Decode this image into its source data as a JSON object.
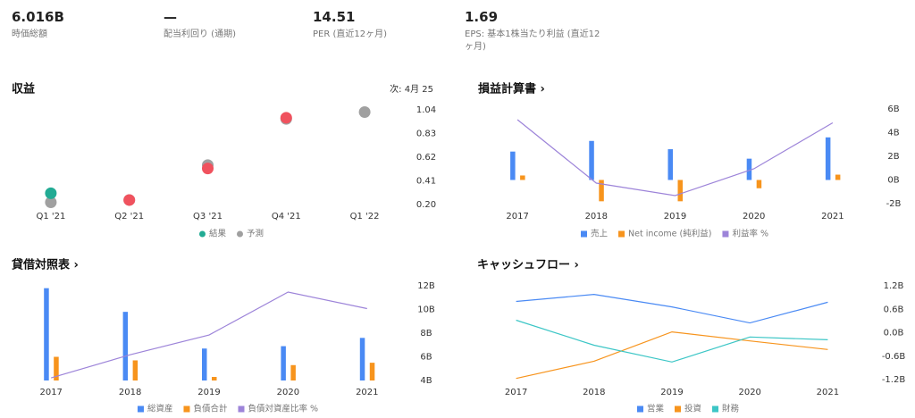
{
  "stats": [
    {
      "value": "6.016B",
      "label": "時価総額"
    },
    {
      "value": "—",
      "label": "配当利回り (通期)"
    },
    {
      "value": "14.51",
      "label": "PER (直近12ヶ月)"
    },
    {
      "value": "1.69",
      "label": "EPS: 基本1株当たり利益 (直近12ヶ月)"
    }
  ],
  "chart_data": [
    {
      "type": "scatter",
      "title": "収益",
      "annotation": "次: 4月 25",
      "categories": [
        "Q1 '21",
        "Q2 '21",
        "Q3 '21",
        "Q4 '21",
        "Q1 '22"
      ],
      "series": [
        {
          "name": "予測",
          "color": "#a0a0a0",
          "values": [
            0.22,
            0.24,
            0.55,
            0.96,
            1.02
          ]
        },
        {
          "name": "結果",
          "color": "#22ab94",
          "colors": [
            "#22ab94",
            "#f0525e",
            "#f0525e",
            "#f0525e",
            null
          ],
          "values": [
            0.3,
            0.24,
            0.52,
            0.97,
            null
          ]
        }
      ],
      "legend_order": [
        1,
        0
      ],
      "ylim": [
        0.2,
        1.04
      ],
      "yticks": [
        {
          "value": 0.2,
          "label": "0.20"
        },
        0.41,
        0.62,
        0.83,
        1.04
      ]
    },
    {
      "type": "bar",
      "title": "損益計算書 ›",
      "categories": [
        "2017",
        "2018",
        "2019",
        "2020",
        "2021"
      ],
      "series": [
        {
          "name": "売上",
          "color": "#4a8af4",
          "values": [
            2.4,
            3.3,
            2.6,
            1.8,
            3.6
          ]
        },
        {
          "name": "Net income (純利益)",
          "color": "#f7941d",
          "values": [
            0.38,
            -1.8,
            -1.8,
            -0.7,
            0.45
          ]
        },
        {
          "name": "利益率 %",
          "color": "#9d84d9",
          "type": "line",
          "axis": "y2",
          "values": [
            16,
            -55,
            -69,
            -39,
            12.5
          ]
        }
      ],
      "ylim": [
        -2,
        6
      ],
      "yticks": [
        {
          "value": 6,
          "label": "6B"
        },
        {
          "value": 4,
          "label": "4B"
        },
        {
          "value": 2,
          "label": "2B"
        },
        {
          "value": 0,
          "label": "0B"
        },
        {
          "value": -2,
          "label": "-2B"
        }
      ],
      "y2lim": [
        -78,
        28
      ]
    },
    {
      "type": "bar",
      "title": "貸借対照表 ›",
      "categories": [
        "2017",
        "2018",
        "2019",
        "2020",
        "2021"
      ],
      "series": [
        {
          "name": "総資産",
          "color": "#4a8af4",
          "values": [
            11.8,
            9.8,
            6.7,
            6.9,
            7.6
          ]
        },
        {
          "name": "負債合計",
          "color": "#f7941d",
          "values": [
            6.0,
            5.7,
            4.3,
            5.3,
            5.5
          ]
        },
        {
          "name": "負債対資産比率 %",
          "color": "#9d84d9",
          "type": "line",
          "axis": "y2",
          "values": [
            51,
            58,
            64,
            77,
            72
          ]
        }
      ],
      "ylim": [
        4,
        12
      ],
      "yticks": [
        {
          "value": 12,
          "label": "12B"
        },
        {
          "value": 10,
          "label": "10B"
        },
        {
          "value": 8,
          "label": "8B"
        },
        {
          "value": 6,
          "label": "6B"
        },
        {
          "value": 4,
          "label": "4B"
        }
      ],
      "y2lim": [
        50.2,
        78.9
      ]
    },
    {
      "type": "line",
      "title": "キャッシュフロー ›",
      "categories": [
        "2017",
        "2018",
        "2019",
        "2020",
        "2021"
      ],
      "series": [
        {
          "name": "営業",
          "color": "#4a8af4",
          "values": [
            0.8,
            0.98,
            0.66,
            0.25,
            0.78
          ]
        },
        {
          "name": "投資",
          "color": "#f7941d",
          "values": [
            -1.17,
            -0.73,
            0.02,
            -0.21,
            -0.43
          ]
        },
        {
          "name": "財務",
          "color": "#3cc6c6",
          "values": [
            0.32,
            -0.32,
            -0.75,
            -0.11,
            -0.18
          ]
        }
      ],
      "ylim": [
        -1.2,
        1.2
      ],
      "yticks": [
        {
          "value": 1.2,
          "label": "1.2B"
        },
        {
          "value": 0.6,
          "label": "0.6B"
        },
        {
          "value": 0,
          "label": "0.0B"
        },
        {
          "value": -0.6,
          "label": "-0.6B"
        },
        {
          "value": -1.2,
          "label": "-1.2B"
        }
      ]
    }
  ]
}
